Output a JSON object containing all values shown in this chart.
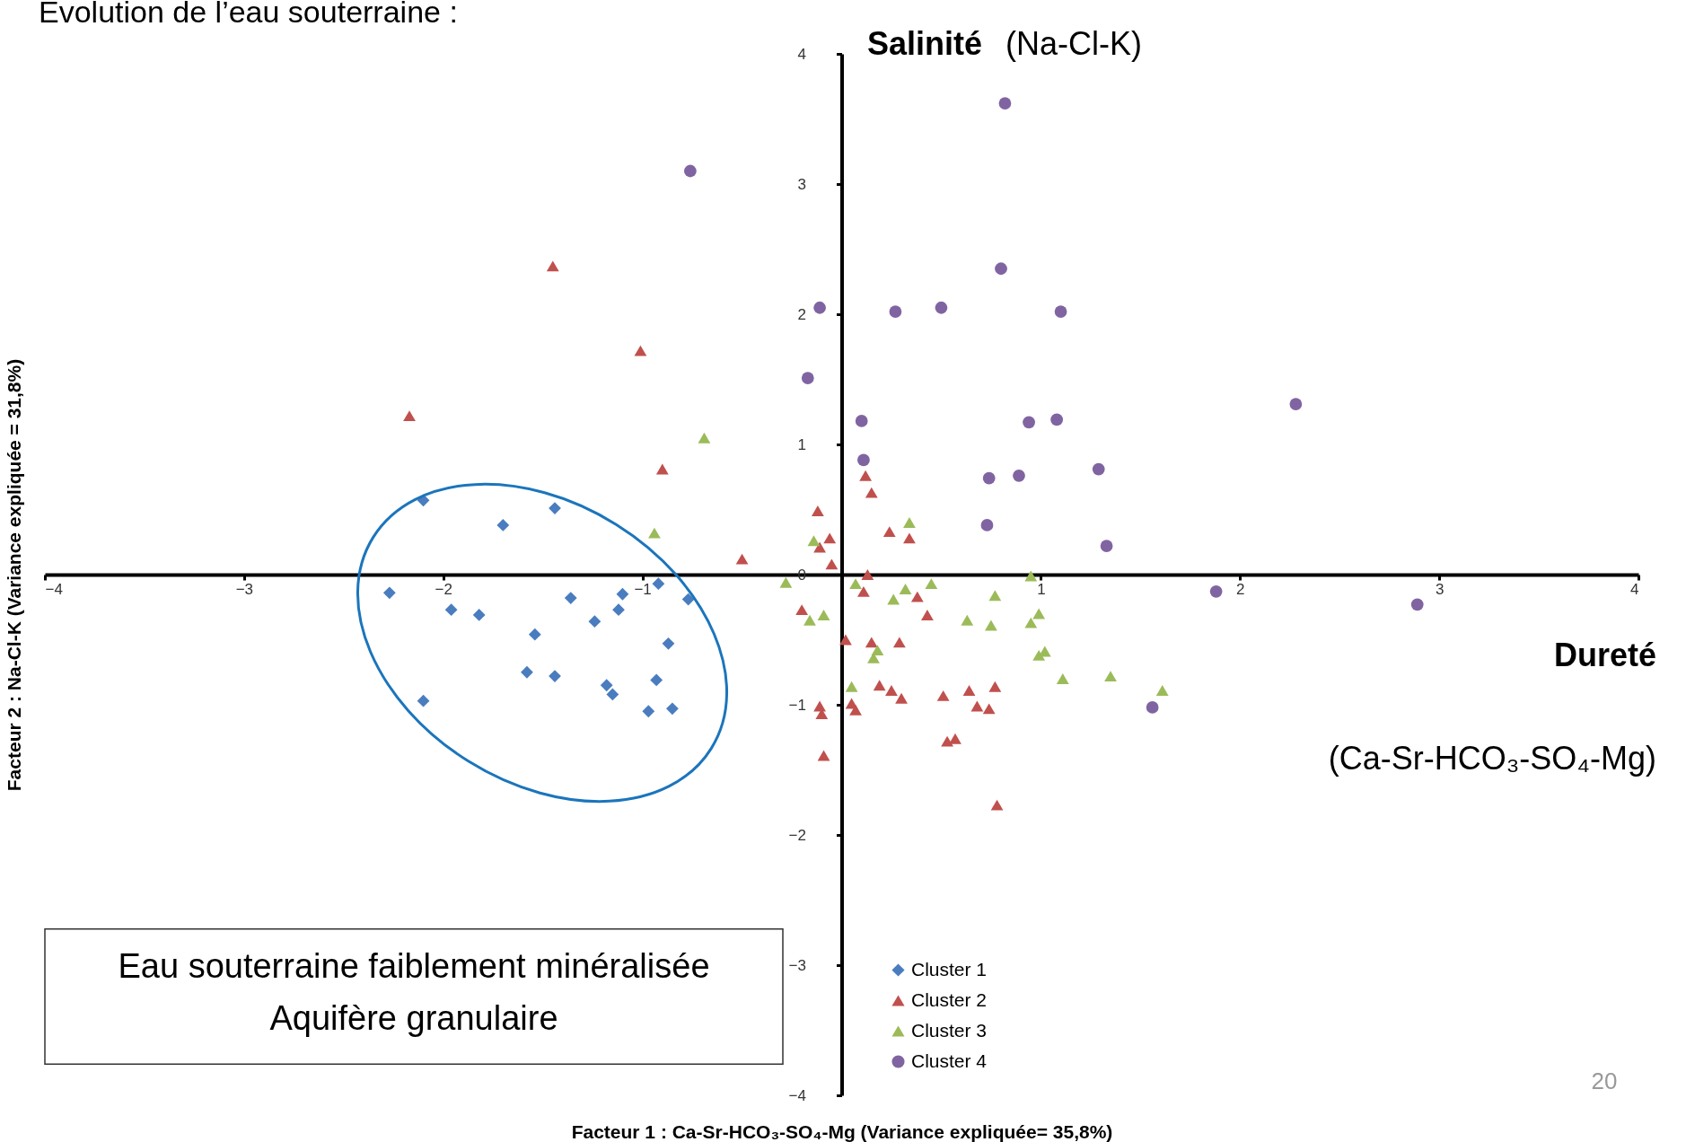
{
  "chart_data": {
    "type": "scatter",
    "title": "Evolution de l’eau souterraine :",
    "xlabel": "Facteur 1 : Ca-Sr-HCO₃-SO₄-Mg (Variance expliquée= 35,8%)",
    "ylabel": "Facteur 2 :  Na-Cl-K (Variance expliquée = 31,8%)",
    "xlim": [
      -4,
      4
    ],
    "ylim": [
      -4,
      4
    ],
    "xticks": [
      -4,
      -3,
      -2,
      -1,
      {
        "value": 0,
        "label": null
      },
      1,
      2,
      3,
      4
    ],
    "yticks": [
      -4,
      -3,
      -2,
      -1,
      0,
      1,
      2,
      3,
      4
    ],
    "grid": false,
    "legend": "bottom",
    "annotations": [
      "Salinité",
      "(Na-Cl-K)",
      "Dureté",
      "(Ca-Sr-HCO₃-SO₄-Mg)",
      "Eau souterraine faiblement minéralisée",
      "Aquifère granulaire",
      "20"
    ],
    "series": [
      {
        "name": "Cluster 1",
        "color": "#4a7dbf",
        "marker": "diamond",
        "x": [
          -2.1,
          -1.44,
          -1.7,
          -2.27,
          -1.96,
          -1.82,
          -1.36,
          -1.1,
          -0.92,
          -0.77,
          -1.12,
          -1.24,
          -1.54,
          -0.87,
          -1.58,
          -1.44,
          -1.18,
          -1.15,
          -0.93,
          -2.1,
          -0.97,
          -0.85
        ],
        "values": [
          0.57,
          0.51,
          0.38,
          -0.14,
          -0.27,
          -0.31,
          -0.18,
          -0.15,
          -0.07,
          -0.19,
          -0.27,
          -0.36,
          -0.46,
          -0.53,
          -0.75,
          -0.78,
          -0.85,
          -0.92,
          -0.81,
          -0.97,
          -1.05,
          -1.03
        ]
      },
      {
        "name": "Cluster 2",
        "color": "#c0504d",
        "marker": "triangle",
        "x": [
          -1.45,
          -1.01,
          -2.17,
          -0.9,
          -0.5,
          -0.12,
          -0.06,
          -0.11,
          -0.05,
          0.12,
          0.15,
          0.13,
          0.24,
          0.34,
          -0.2,
          0.02,
          0.11,
          0.15,
          0.29,
          0.38,
          0.43,
          0.19,
          0.25,
          0.3,
          0.51,
          0.64,
          0.77,
          0.68,
          0.74,
          -0.11,
          -0.1,
          0.05,
          0.07,
          -0.09,
          0.53,
          0.57,
          0.78
        ],
        "values": [
          2.37,
          1.72,
          1.22,
          0.81,
          0.12,
          0.49,
          0.28,
          0.21,
          0.08,
          0.76,
          0.63,
          0.0,
          0.33,
          0.28,
          -0.27,
          -0.5,
          -0.13,
          -0.52,
          -0.52,
          -0.17,
          -0.31,
          -0.85,
          -0.89,
          -0.95,
          -0.93,
          -0.89,
          -0.86,
          -1.01,
          -1.03,
          -1.01,
          -1.07,
          -0.99,
          -1.04,
          -1.39,
          -1.28,
          -1.26,
          -1.77
        ]
      },
      {
        "name": "Cluster 3",
        "color": "#9bbb59",
        "marker": "triangle",
        "x": [
          -0.69,
          -0.94,
          -0.28,
          -0.14,
          -0.16,
          -0.09,
          0.07,
          0.34,
          0.26,
          0.32,
          0.45,
          0.63,
          0.77,
          0.75,
          0.95,
          0.95,
          0.99,
          0.99,
          1.02,
          1.11,
          1.35,
          1.61,
          0.05,
          0.16,
          0.18
        ],
        "values": [
          1.05,
          0.32,
          -0.06,
          0.26,
          -0.35,
          -0.31,
          -0.07,
          0.4,
          -0.19,
          -0.11,
          -0.07,
          -0.35,
          -0.16,
          -0.39,
          -0.01,
          -0.37,
          -0.3,
          -0.62,
          -0.59,
          -0.8,
          -0.78,
          -0.89,
          -0.86,
          -0.64,
          -0.58
        ]
      },
      {
        "name": "Cluster 4",
        "color": "#8064a2",
        "marker": "circle",
        "x": [
          0.82,
          -0.76,
          0.8,
          -0.11,
          0.27,
          0.5,
          1.1,
          -0.17,
          0.1,
          0.94,
          1.08,
          2.28,
          0.11,
          0.74,
          0.89,
          1.29,
          0.73,
          1.33,
          1.88,
          2.89,
          1.56
        ],
        "values": [
          3.62,
          3.1,
          2.35,
          2.05,
          2.02,
          2.05,
          2.02,
          1.51,
          1.18,
          1.17,
          1.19,
          1.31,
          0.88,
          0.74,
          0.76,
          0.81,
          0.38,
          0.22,
          -0.13,
          -0.23,
          -1.02
        ]
      }
    ]
  }
}
